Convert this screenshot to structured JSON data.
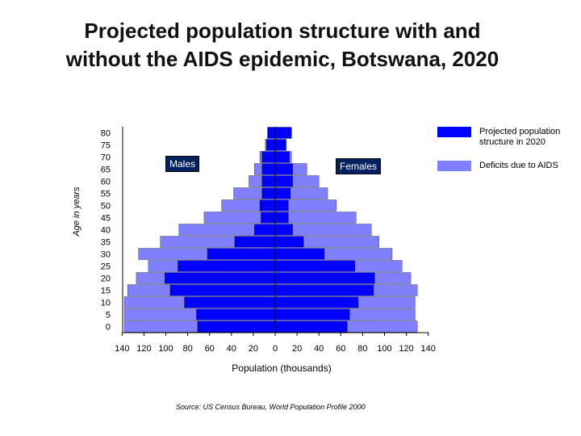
{
  "title_line1": "Projected population structure with and",
  "title_line2": "without the AIDS epidemic, Botswana, 2020",
  "legend": {
    "projected": "Projected population structure in 2020",
    "deficit": "Deficits due to AIDS"
  },
  "colors": {
    "projected": "#0000ff",
    "deficit": "#8080ff"
  },
  "labels": {
    "males": "Males",
    "females": "Females"
  },
  "source": "Source: US Census Bureau, World Population Profile 2000",
  "chart_data": {
    "type": "bar",
    "orientation": "horizontal",
    "xlabel": "Population (thousands)",
    "ylabel": "Age in years",
    "xlim": [
      -140,
      140
    ],
    "x_ticks": [
      140,
      120,
      100,
      80,
      60,
      40,
      20,
      0,
      20,
      40,
      60,
      80,
      100,
      120,
      140
    ],
    "categories": [
      "80",
      "75",
      "70",
      "65",
      "60",
      "55",
      "50",
      "45",
      "40",
      "35",
      "30",
      "25",
      "20",
      "15",
      "10",
      "5",
      "0"
    ],
    "series": [
      {
        "name": "Projected population structure in 2020",
        "side": "male",
        "values": [
          7,
          8,
          12,
          12,
          12,
          12,
          14,
          13,
          19,
          37,
          62,
          89,
          101,
          96,
          83,
          72,
          71
        ]
      },
      {
        "name": "Deficits due to AIDS",
        "side": "male",
        "values": [
          0,
          1,
          2,
          7,
          12,
          26,
          35,
          52,
          69,
          68,
          63,
          27,
          26,
          39,
          55,
          66,
          67
        ]
      },
      {
        "name": "Projected population structure in 2020",
        "side": "female",
        "values": [
          15,
          10,
          13,
          16,
          16,
          14,
          12,
          12,
          16,
          26,
          45,
          73,
          91,
          90,
          76,
          68,
          66
        ]
      },
      {
        "name": "Deficits due to AIDS",
        "side": "female",
        "values": [
          0,
          0,
          2,
          13,
          24,
          34,
          44,
          62,
          72,
          69,
          62,
          43,
          33,
          40,
          52,
          60,
          64
        ]
      }
    ],
    "grid": false,
    "legend_position": "top-right"
  }
}
